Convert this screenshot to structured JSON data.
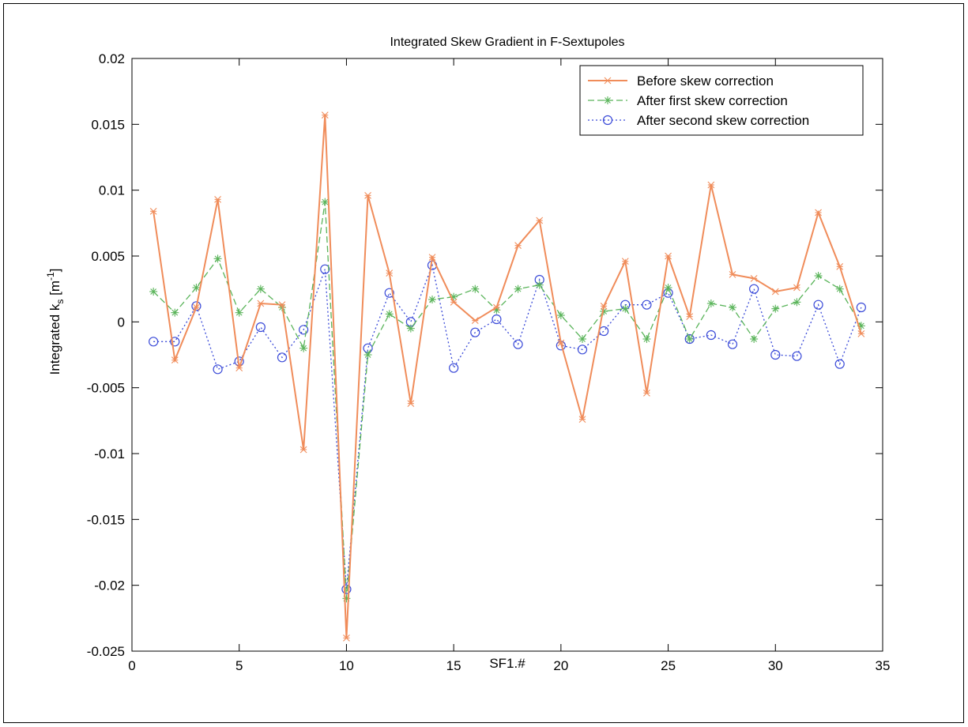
{
  "chart_data": {
    "type": "line",
    "title": "Integrated Skew Gradient in F-Sextupoles",
    "xlabel": "SF1.#",
    "ylabel": {
      "main": "Integrated k",
      "sub": "s",
      "unit_prefix": " [m",
      "unit_sup": "-1",
      "unit_suffix": "]"
    },
    "xlim": [
      0,
      35
    ],
    "ylim": [
      -0.025,
      0.02
    ],
    "xticks": [
      0,
      5,
      10,
      15,
      20,
      25,
      30,
      35
    ],
    "xtick_labels": [
      "0",
      "5",
      "10",
      "15",
      "20",
      "25",
      "30",
      "35"
    ],
    "yticks": [
      -0.025,
      -0.02,
      -0.015,
      -0.01,
      -0.005,
      0,
      0.005,
      0.01,
      0.015,
      0.02
    ],
    "ytick_labels": [
      "-0.025",
      "-0.02",
      "-0.015",
      "-0.01",
      "-0.005",
      "0",
      "0.005",
      "0.01",
      "0.015",
      "0.02"
    ],
    "grid": false,
    "legend_position": "top-right",
    "x": [
      1,
      2,
      3,
      4,
      5,
      6,
      7,
      8,
      9,
      10,
      11,
      12,
      13,
      14,
      15,
      16,
      17,
      18,
      19,
      20,
      21,
      22,
      23,
      24,
      25,
      26,
      27,
      28,
      29,
      30,
      31,
      32,
      33,
      34
    ],
    "series": [
      {
        "name": "Before skew correction",
        "color": "#f08c5a",
        "marker": "x-star",
        "line": "solid",
        "values": [
          0.0084,
          -0.0029,
          0.0011,
          0.0093,
          -0.0035,
          0.0014,
          0.0013,
          -0.0097,
          0.0157,
          -0.024,
          0.0096,
          0.0037,
          -0.0062,
          0.0049,
          0.0015,
          0.0001,
          0.0011,
          0.0058,
          0.0077,
          -0.0016,
          -0.0074,
          0.0012,
          0.0046,
          -0.0054,
          0.005,
          0.0004,
          0.0104,
          0.0036,
          0.0033,
          0.0023,
          0.0026,
          0.0083,
          0.0042,
          -0.0009
        ]
      },
      {
        "name": "After first skew correction",
        "color": "#5ab45a",
        "marker": "asterisk",
        "line": "dashed",
        "values": [
          0.0023,
          0.0007,
          0.0026,
          0.0048,
          0.0007,
          0.0025,
          0.0011,
          -0.002,
          0.0091,
          -0.021,
          -0.0025,
          0.0006,
          -0.0005,
          0.0017,
          0.0019,
          0.0025,
          0.0009,
          0.0025,
          0.0028,
          0.0005,
          -0.0013,
          0.0008,
          0.001,
          -0.0013,
          0.0026,
          -0.0013,
          0.0014,
          0.0011,
          -0.0013,
          0.001,
          0.0015,
          0.0035,
          0.0025,
          -0.0003
        ]
      },
      {
        "name": "After second skew correction",
        "color": "#3a4ad8",
        "marker": "circle",
        "line": "dotted",
        "values": [
          -0.0015,
          -0.0015,
          0.0012,
          -0.0036,
          -0.003,
          -0.0004,
          -0.0027,
          -0.0006,
          0.004,
          -0.0203,
          -0.002,
          0.0022,
          0.0,
          0.0043,
          -0.0035,
          -0.0008,
          0.0002,
          -0.0017,
          0.0032,
          -0.0018,
          -0.0021,
          -0.0007,
          0.0013,
          0.0013,
          0.0022,
          -0.0013,
          -0.001,
          -0.0017,
          0.0025,
          -0.0025,
          -0.0026,
          0.0013,
          -0.0032,
          0.0011
        ]
      }
    ]
  }
}
